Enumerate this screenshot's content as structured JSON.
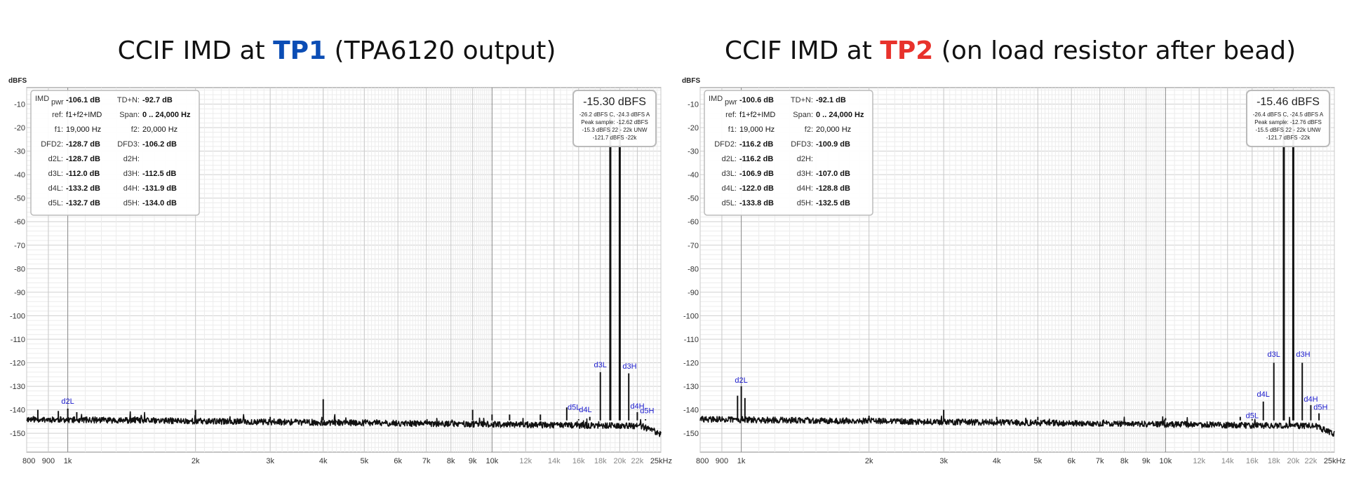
{
  "chart_data": [
    {
      "type": "line",
      "title": {
        "pre": "CCIF IMD at ",
        "tp": "TP1",
        "post": " (TPA6120 output)",
        "tp_color": "#0b4db5"
      },
      "ylabel": "dBFS",
      "xunit": "kHz",
      "xscale": "log",
      "xlim": [
        800,
        25000
      ],
      "ylim": [
        -158,
        -3
      ],
      "yticks": [
        -10,
        -20,
        -30,
        -40,
        -50,
        -60,
        -70,
        -80,
        -90,
        -100,
        -110,
        -120,
        -130,
        -140,
        -150
      ],
      "xticks": [
        {
          "v": 800,
          "label": "800"
        },
        {
          "v": 900,
          "label": "900"
        },
        {
          "v": 1000,
          "label": "1k"
        },
        {
          "v": 2000,
          "label": "2k"
        },
        {
          "v": 3000,
          "label": "3k"
        },
        {
          "v": 4000,
          "label": "4k"
        },
        {
          "v": 5000,
          "label": "5k"
        },
        {
          "v": 6000,
          "label": "6k"
        },
        {
          "v": 7000,
          "label": "7k"
        },
        {
          "v": 8000,
          "label": "8k"
        },
        {
          "v": 9000,
          "label": "9k"
        },
        {
          "v": 10000,
          "label": "10k"
        },
        {
          "v": 12000,
          "label": "12k",
          "minor": true
        },
        {
          "v": 14000,
          "label": "14k",
          "minor": true
        },
        {
          "v": 16000,
          "label": "16k",
          "minor": true
        },
        {
          "v": 18000,
          "label": "18k",
          "minor": true
        },
        {
          "v": 20000,
          "label": "20k",
          "minor": true
        },
        {
          "v": 22000,
          "label": "22k",
          "minor": true
        },
        {
          "v": 25000,
          "label": "25kHz"
        }
      ],
      "noise_floor": -145.5,
      "noise_slope": 3,
      "seed": 11,
      "peaks": [
        {
          "f": 19000,
          "db": -15.3
        },
        {
          "f": 20000,
          "db": -15.3
        },
        {
          "f": 18000,
          "db": -124
        },
        {
          "f": 21000,
          "db": -124.5
        },
        {
          "f": 17000,
          "db": -143
        },
        {
          "f": 22000,
          "db": -141
        },
        {
          "f": 16000,
          "db": -144
        },
        {
          "f": 23000,
          "db": -144
        },
        {
          "f": 1000,
          "db": -139.5
        },
        {
          "f": 950,
          "db": -140.5
        },
        {
          "f": 1050,
          "db": -141
        },
        {
          "f": 850,
          "db": -140
        },
        {
          "f": 2000,
          "db": -140
        },
        {
          "f": 4000,
          "db": -135.5
        },
        {
          "f": 9000,
          "db": -140
        },
        {
          "f": 10000,
          "db": -142
        },
        {
          "f": 11000,
          "db": -142
        },
        {
          "f": 13000,
          "db": -142
        },
        {
          "f": 15000,
          "db": -139
        },
        {
          "f": 3000,
          "db": -143
        }
      ],
      "harmonic_labels": [
        {
          "text": "d2L",
          "f": 1000,
          "db": -137.5
        },
        {
          "text": "d3L",
          "f": 18000,
          "db": -122
        },
        {
          "text": "d3H",
          "f": 21100,
          "db": -122.5
        },
        {
          "text": "d4L",
          "f": 16600,
          "db": -141
        },
        {
          "text": "d5L",
          "f": 15600,
          "db": -140
        },
        {
          "text": "d4H",
          "f": 22000,
          "db": -139.5
        },
        {
          "text": "d5H",
          "f": 23200,
          "db": -141.5
        }
      ],
      "info": {
        "imd_label": "IMD",
        "imd_sub": "pwr",
        "imd": "-106.1 dB",
        "tdn_label": "TD+N:",
        "tdn": "-92.7 dB",
        "ref_label": "ref:",
        "ref": "f1+f2+IMD",
        "span_label": "Span:",
        "span": "0 .. 24,000 Hz",
        "f1_label": "f1:",
        "f1": "19,000 Hz",
        "f2_label": "f2:",
        "f2": "20,000 Hz",
        "dfd2_label": "DFD2:",
        "dfd2": "-128.7 dB",
        "dfd3_label": "DFD3:",
        "dfd3": "-106.2 dB",
        "d2l_label": "d2L:",
        "d2l": "-128.7 dB",
        "d2h_label": "d2H:",
        "d2h": "",
        "d3l_label": "d3L:",
        "d3l": "-112.0 dB",
        "d3h_label": "d3H:",
        "d3h": "-112.5 dB",
        "d4l_label": "d4L:",
        "d4l": "-133.2 dB",
        "d4h_label": "d4H:",
        "d4h": "-131.9 dB",
        "d5l_label": "d5L:",
        "d5l": "-132.7 dB",
        "d5h_label": "d5H:",
        "d5h": "-134.0 dB"
      },
      "level": {
        "main": "-15.30 dBFS",
        "line1": "-26.2 dBFS C, -24.3 dBFS A",
        "line2": "Peak sample: -12.62 dBFS",
        "line3": "-15.3 dBFS 22 - 22k UNW",
        "line4": "-121.7 dBFS -22k"
      }
    },
    {
      "type": "line",
      "title": {
        "pre": "CCIF IMD at ",
        "tp": "TP2",
        "post": " (on load resistor after bead)",
        "tp_color": "#e8322c"
      },
      "ylabel": "dBFS",
      "xunit": "kHz",
      "xscale": "log",
      "xlim": [
        800,
        25000
      ],
      "ylim": [
        -158,
        -3
      ],
      "yticks": [
        -10,
        -20,
        -30,
        -40,
        -50,
        -60,
        -70,
        -80,
        -90,
        -100,
        -110,
        -120,
        -130,
        -140,
        -150
      ],
      "xticks": [
        {
          "v": 800,
          "label": "800"
        },
        {
          "v": 900,
          "label": "900"
        },
        {
          "v": 1000,
          "label": "1k"
        },
        {
          "v": 2000,
          "label": "2k"
        },
        {
          "v": 3000,
          "label": "3k"
        },
        {
          "v": 4000,
          "label": "4k"
        },
        {
          "v": 5000,
          "label": "5k"
        },
        {
          "v": 6000,
          "label": "6k"
        },
        {
          "v": 7000,
          "label": "7k"
        },
        {
          "v": 8000,
          "label": "8k"
        },
        {
          "v": 9000,
          "label": "9k"
        },
        {
          "v": 10000,
          "label": "10k"
        },
        {
          "v": 12000,
          "label": "12k",
          "minor": true
        },
        {
          "v": 14000,
          "label": "14k",
          "minor": true
        },
        {
          "v": 16000,
          "label": "16k",
          "minor": true
        },
        {
          "v": 18000,
          "label": "18k",
          "minor": true
        },
        {
          "v": 20000,
          "label": "20k",
          "minor": true
        },
        {
          "v": 22000,
          "label": "22k",
          "minor": true
        },
        {
          "v": 25000,
          "label": "25kHz"
        }
      ],
      "noise_floor": -145.5,
      "noise_slope": 3,
      "seed": 29,
      "peaks": [
        {
          "f": 19000,
          "db": -15.46
        },
        {
          "f": 20000,
          "db": -15.46
        },
        {
          "f": 18000,
          "db": -120
        },
        {
          "f": 21000,
          "db": -120
        },
        {
          "f": 17000,
          "db": -136.5
        },
        {
          "f": 22000,
          "db": -138
        },
        {
          "f": 16000,
          "db": -144
        },
        {
          "f": 23000,
          "db": -141.5
        },
        {
          "f": 1000,
          "db": -130
        },
        {
          "f": 980,
          "db": -134
        },
        {
          "f": 1020,
          "db": -135
        },
        {
          "f": 3000,
          "db": -140
        },
        {
          "f": 2000,
          "db": -142.5
        },
        {
          "f": 4000,
          "db": -143
        },
        {
          "f": 5000,
          "db": -143
        },
        {
          "f": 10000,
          "db": -143.5
        },
        {
          "f": 15000,
          "db": -143
        }
      ],
      "harmonic_labels": [
        {
          "text": "d2L",
          "f": 1000,
          "db": -128.5
        },
        {
          "text": "d3L",
          "f": 18000,
          "db": -117.5
        },
        {
          "text": "d3H",
          "f": 21100,
          "db": -117.5
        },
        {
          "text": "d4L",
          "f": 17000,
          "db": -134.5
        },
        {
          "text": "d5L",
          "f": 16000,
          "db": -143.5
        },
        {
          "text": "d4H",
          "f": 22000,
          "db": -136.5
        },
        {
          "text": "d5H",
          "f": 23200,
          "db": -140
        }
      ],
      "info": {
        "imd_label": "IMD",
        "imd_sub": "pwr",
        "imd": "-100.6 dB",
        "tdn_label": "TD+N:",
        "tdn": "-92.1 dB",
        "ref_label": "ref:",
        "ref": "f1+f2+IMD",
        "span_label": "Span:",
        "span": "0 .. 24,000 Hz",
        "f1_label": "f1:",
        "f1": "19,000 Hz",
        "f2_label": "f2:",
        "f2": "20,000 Hz",
        "dfd2_label": "DFD2:",
        "dfd2": "-116.2 dB",
        "dfd3_label": "DFD3:",
        "dfd3": "-100.9 dB",
        "d2l_label": "d2L:",
        "d2l": "-116.2 dB",
        "d2h_label": "d2H:",
        "d2h": "",
        "d3l_label": "d3L:",
        "d3l": "-106.9 dB",
        "d3h_label": "d3H:",
        "d3h": "-107.0 dB",
        "d4l_label": "d4L:",
        "d4l": "-122.0 dB",
        "d4h_label": "d4H:",
        "d4h": "-128.8 dB",
        "d5l_label": "d5L:",
        "d5l": "-133.8 dB",
        "d5h_label": "d5H:",
        "d5h": "-132.5 dB"
      },
      "level": {
        "main": "-15.46 dBFS",
        "line1": "-26.4 dBFS C, -24.5 dBFS A",
        "line2": "Peak sample: -12.76 dBFS",
        "line3": "-15.5 dBFS 22 - 22k UNW",
        "line4": "-121.7 dBFS -22k"
      }
    }
  ]
}
